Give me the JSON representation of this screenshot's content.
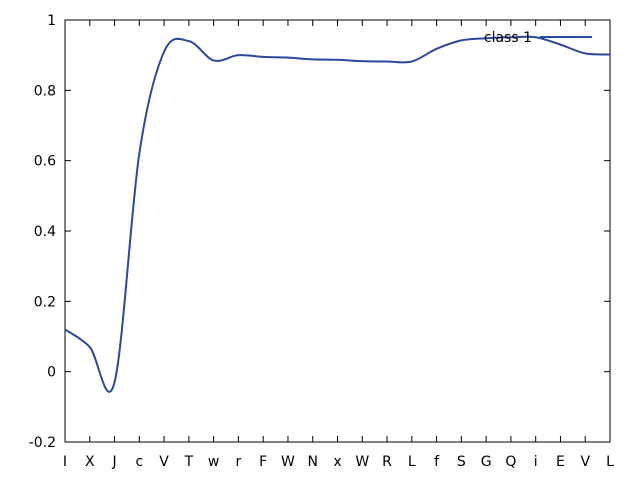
{
  "chart_data": {
    "type": "line",
    "title": "",
    "xlabel": "",
    "ylabel": "",
    "categories": [
      "I",
      "X",
      "J",
      "c",
      "V",
      "T",
      "w",
      "r",
      "F",
      "W",
      "N",
      "x",
      "W",
      "R",
      "L",
      "f",
      "S",
      "G",
      "Q",
      "i",
      "E",
      "V",
      "L"
    ],
    "ylim": [
      -0.2,
      1.0
    ],
    "yticks": [
      -0.2,
      0,
      0.2,
      0.4,
      0.6,
      0.8,
      1
    ],
    "ytick_labels": [
      "-0.2",
      "0",
      "0.2",
      "0.4",
      "0.6",
      "0.8",
      "1"
    ],
    "legend_position": "top-right",
    "grid": false,
    "series": [
      {
        "name": "class 1",
        "color": "#2a4a9a",
        "values": [
          0.12,
          0.07,
          -0.03,
          0.62,
          0.91,
          0.94,
          0.885,
          0.9,
          0.895,
          0.893,
          0.888,
          0.887,
          0.883,
          0.882,
          0.882,
          0.918,
          0.942,
          0.948,
          0.951,
          0.951,
          0.93,
          0.905,
          0.902
        ]
      }
    ]
  }
}
